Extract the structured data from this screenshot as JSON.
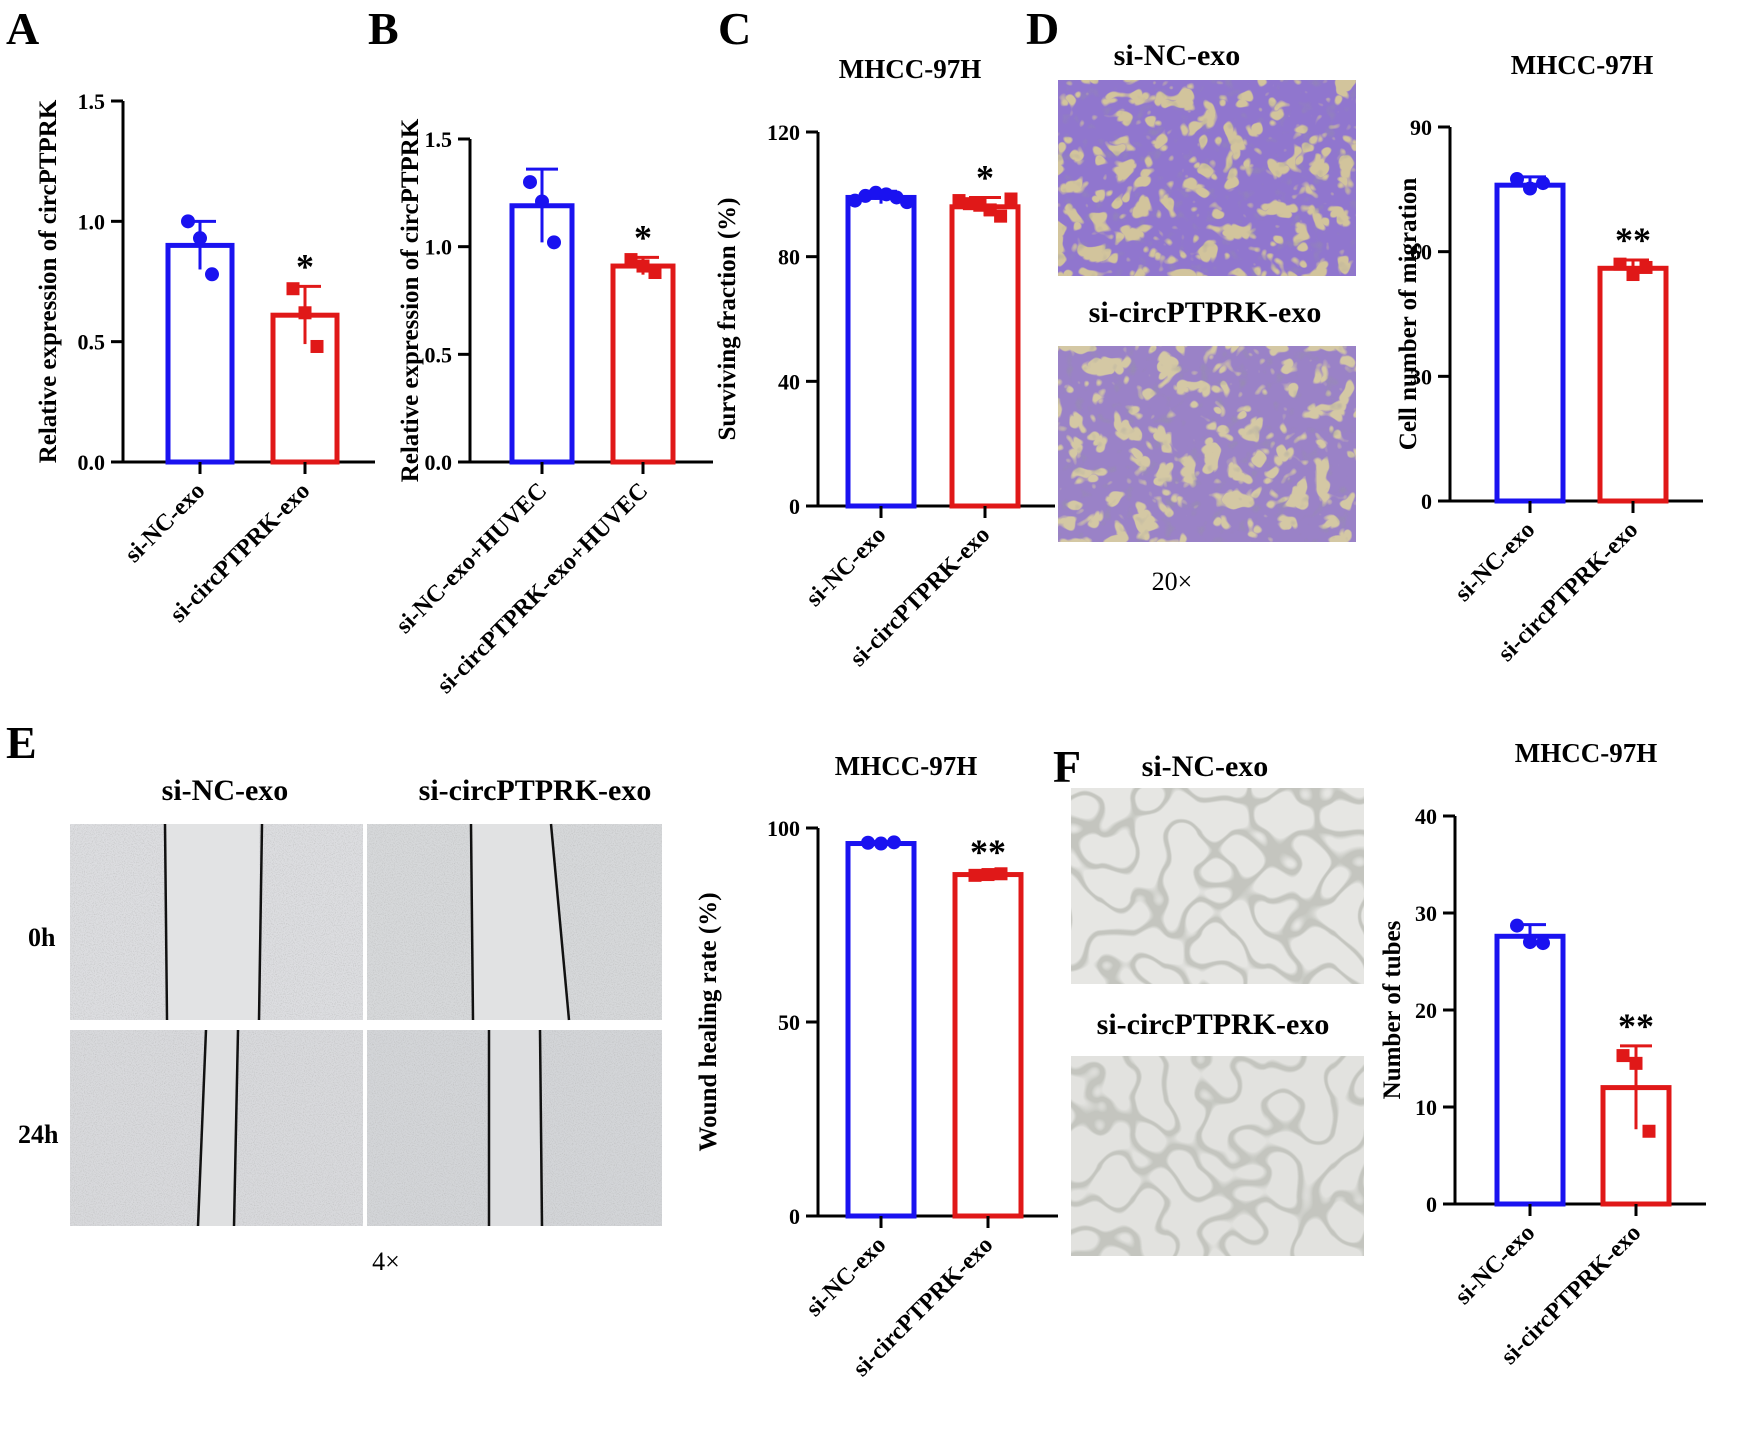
{
  "figure": {
    "panel_letters": [
      "A",
      "B",
      "C",
      "D",
      "E",
      "F"
    ],
    "panelD": {
      "image_labels": [
        "si-NC-exo",
        "si-circPTPRK-exo"
      ],
      "magnification": "20×"
    },
    "panelE": {
      "column_labels": [
        "si-NC-exo",
        "si-circPTPRK-exo"
      ],
      "row_labels": [
        "0h",
        "24h"
      ],
      "magnification": "4×"
    },
    "panelF": {
      "image_labels": [
        "si-NC-exo",
        "si-circPTPRK-exo"
      ]
    }
  },
  "colors": {
    "blue": "#1a12f0",
    "red": "#e01818"
  },
  "chart_data": [
    {
      "id": "A",
      "type": "bar",
      "title": "",
      "ylabel": "Relative expression of circPTPRK",
      "categories": [
        "si-NC-exo",
        "si-circPTPRK-exo"
      ],
      "values": [
        0.9,
        0.61
      ],
      "error": [
        0.1,
        0.12
      ],
      "points": [
        [
          1.0,
          0.93,
          0.78
        ],
        [
          0.72,
          0.62,
          0.48
        ]
      ],
      "ylim": [
        0,
        1.5
      ],
      "yticks": [
        "0.0",
        "0.5",
        "1.0",
        "1.5"
      ],
      "significance": [
        "",
        "*"
      ]
    },
    {
      "id": "B",
      "type": "bar",
      "title": "",
      "ylabel": "Relative expression of circPTPRK",
      "categories": [
        "si-NC-exo+HUVEC",
        "si-circPTPRK-exo+HUVEC"
      ],
      "values": [
        1.19,
        0.91
      ],
      "error": [
        0.17,
        0.04
      ],
      "points": [
        [
          1.3,
          1.21,
          1.02
        ],
        [
          0.94,
          0.91,
          0.88
        ]
      ],
      "ylim": [
        0,
        1.5
      ],
      "yticks": [
        "0.0",
        "0.5",
        "1.0",
        "1.5"
      ],
      "significance": [
        "",
        "*"
      ]
    },
    {
      "id": "C",
      "type": "bar",
      "title": "MHCC-97H",
      "ylabel": "Surviving fraction (%)",
      "categories": [
        "si-NC-exo",
        "si-circPTPRK-exo"
      ],
      "values": [
        99,
        96
      ],
      "error": [
        2,
        3
      ],
      "points": [
        [
          98,
          99.5,
          100.5,
          100,
          99,
          97.5
        ],
        [
          98,
          97,
          96.5,
          95,
          93,
          98.5
        ]
      ],
      "ylim": [
        0,
        120
      ],
      "yticks": [
        "0",
        "40",
        "80",
        "120"
      ],
      "significance": [
        "",
        "*"
      ]
    },
    {
      "id": "D",
      "type": "bar",
      "title": "MHCC-97H",
      "ylabel": "Cell number of migration",
      "categories": [
        "si-NC-exo",
        "si-circPTPRK-exo"
      ],
      "values": [
        76,
        56
      ],
      "error": [
        2,
        2
      ],
      "points": [
        [
          77.5,
          75.2,
          76.5
        ],
        [
          57,
          54.5,
          56.2
        ]
      ],
      "ylim": [
        0,
        90
      ],
      "yticks": [
        "0",
        "30",
        "60",
        "90"
      ],
      "significance": [
        "",
        "**"
      ]
    },
    {
      "id": "E",
      "type": "bar",
      "title": "MHCC-97H",
      "ylabel": "Wound healing rate (%)",
      "categories": [
        "si-NC-exo",
        "si-circPTPRK-exo"
      ],
      "values": [
        96,
        88
      ],
      "error": [
        0.5,
        0.6
      ],
      "points": [
        [
          96.2,
          96,
          96.3
        ],
        [
          87.8,
          88,
          88.2
        ]
      ],
      "ylim": [
        0,
        100
      ],
      "yticks": [
        "0",
        "50",
        "100"
      ],
      "significance": [
        "",
        "**"
      ]
    },
    {
      "id": "F",
      "type": "bar",
      "title": "MHCC-97H",
      "ylabel": "Number of tubes",
      "categories": [
        "si-NC-exo",
        "si-circPTPRK-exo"
      ],
      "values": [
        27.6,
        12
      ],
      "error": [
        1.2,
        4.3
      ],
      "points": [
        [
          28.7,
          27,
          26.9
        ],
        [
          15.3,
          14.5,
          7.5
        ]
      ],
      "ylim": [
        0,
        40
      ],
      "yticks": [
        "0",
        "10",
        "20",
        "30",
        "40"
      ],
      "significance": [
        "",
        "**"
      ]
    }
  ]
}
